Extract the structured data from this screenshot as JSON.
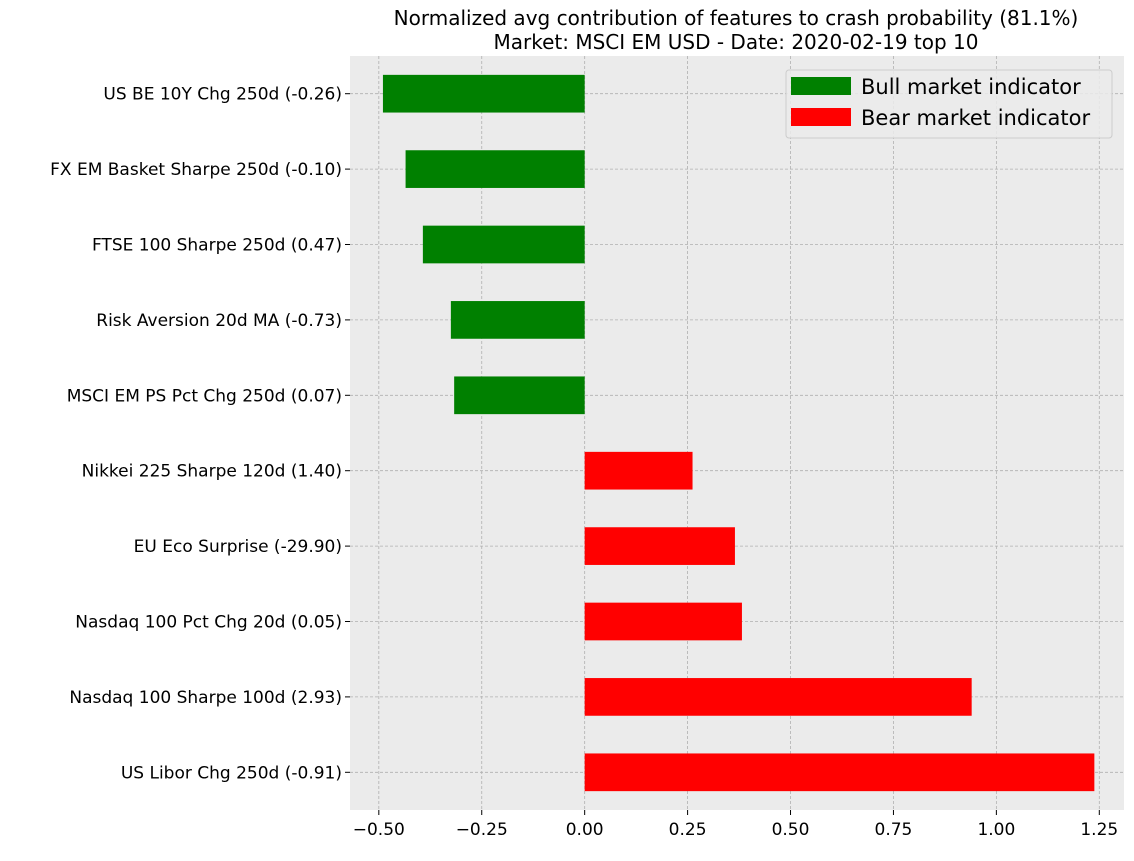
{
  "chart_data": {
    "type": "bar",
    "orientation": "horizontal",
    "title": "Normalized avg contribution of features to crash probability (81.1%)",
    "subtitle": "Market: MSCI EM USD - Date: 2020-02-19  top 10",
    "categories": [
      "US BE 10Y Chg 250d (-0.26)",
      "FX EM Basket Sharpe 250d (-0.10)",
      "FTSE 100 Sharpe 250d (0.47)",
      "Risk Aversion 20d MA (-0.73)",
      "MSCI EM PS Pct Chg 250d (0.07)",
      "Nikkei 225 Sharpe 120d (1.40)",
      "EU Eco Surprise (-29.90)",
      "Nasdaq 100 Pct Chg 20d (0.05)",
      "Nasdaq 100 Sharpe 100d (2.93)",
      "US Libor Chg 250d (-0.91)"
    ],
    "values": [
      -0.49,
      -0.435,
      -0.393,
      -0.325,
      -0.317,
      0.262,
      0.365,
      0.382,
      0.94,
      1.238
    ],
    "bar_colors": [
      "#008000",
      "#008000",
      "#008000",
      "#008000",
      "#008000",
      "#ff0000",
      "#ff0000",
      "#ff0000",
      "#ff0000",
      "#ff0000"
    ],
    "xlim": [
      -0.57,
      1.31
    ],
    "xticks": [
      -0.5,
      -0.25,
      0.0,
      0.25,
      0.5,
      0.75,
      1.0,
      1.25
    ],
    "xtick_labels": [
      "−0.50",
      "−0.25",
      "0.00",
      "0.25",
      "0.50",
      "0.75",
      "1.00",
      "1.25"
    ],
    "grid": true,
    "legend": {
      "placement": "top-right",
      "entries": [
        {
          "label": "Bull market indicator",
          "color": "#008000"
        },
        {
          "label": "Bear market indicator",
          "color": "#ff0000"
        }
      ]
    },
    "background": "#ebebeb"
  }
}
